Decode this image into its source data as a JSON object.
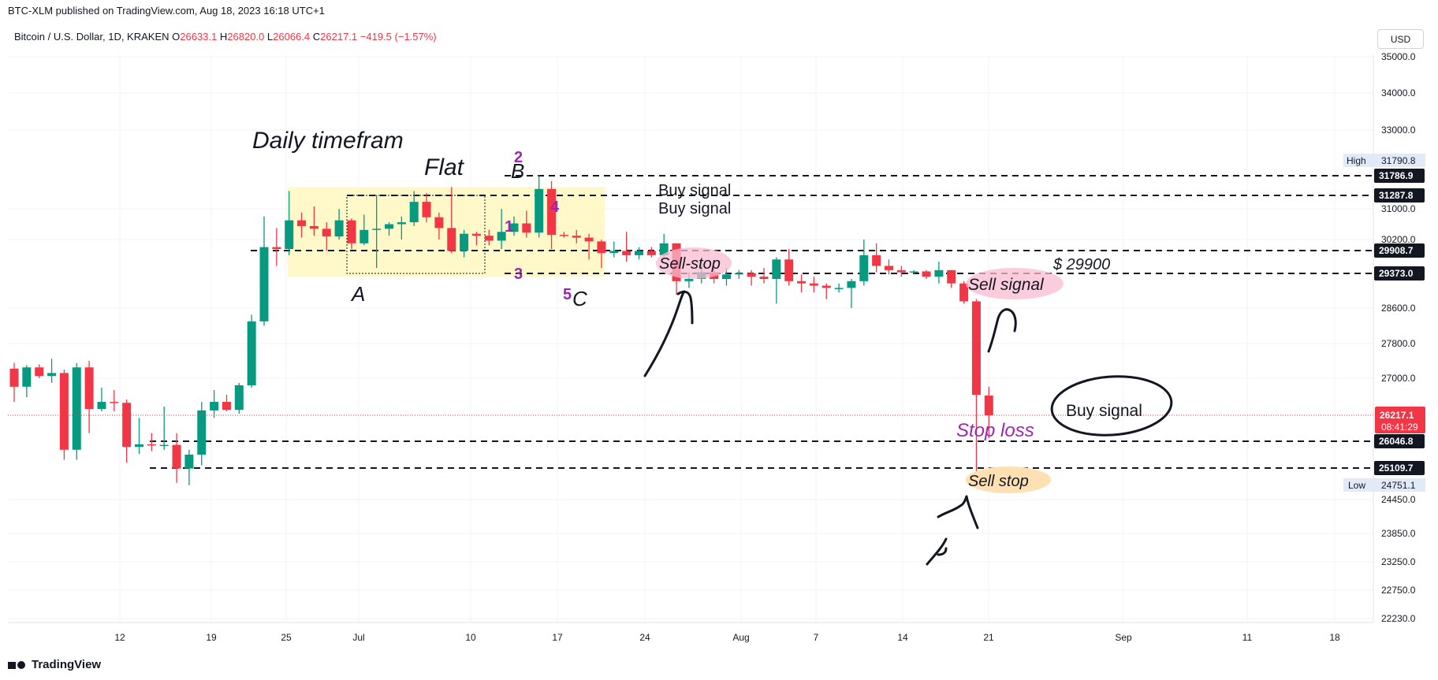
{
  "header": {
    "publisher_line": "BTC-XLM published on TradingView.com, Aug 18, 2023 16:18 UTC+1"
  },
  "legend": {
    "symbol": "Bitcoin / U.S. Dollar, 1D, KRAKEN",
    "o_label": "O",
    "o_value": "26633.1",
    "h_label": "H",
    "h_value": "26820.0",
    "l_label": "L",
    "l_value": "26066.4",
    "c_label": "C",
    "c_value": "26217.1",
    "change": "−419.5 (−1.57%)"
  },
  "currency": "USD",
  "footer": {
    "brand": "TradingView"
  },
  "colors": {
    "up": "#089981",
    "down": "#f23645",
    "annotation_purple": "#9c27b0",
    "flat_box": "#fff8c9",
    "sell_stop_oval": "#f8bbd0",
    "sell_stop_bottom_oval": "#ffe0b2"
  },
  "price_axis": {
    "ticks": [
      "35000.0",
      "34000.0",
      "33000.0",
      "31000.0",
      "30200.0",
      "28600.0",
      "27800.0",
      "27000.0",
      "24450.0",
      "23850.0",
      "23250.0",
      "22750.0",
      "22230.0"
    ],
    "high_label": "High",
    "high_value": "31790.8",
    "low_label": "Low",
    "low_value": "24751.1",
    "level_labels": [
      "31786.9",
      "31287.8",
      "29908.7",
      "29373.0",
      "26046.8",
      "25109.7"
    ],
    "last_price": "26217.1",
    "countdown": "08:41:29"
  },
  "time_axis": {
    "ticks": [
      "12",
      "19",
      "25",
      "Jul",
      "10",
      "17",
      "24",
      "Aug",
      "7",
      "14",
      "21",
      "Sep",
      "11",
      "18"
    ]
  },
  "annotations": {
    "daily_timeframe": "Daily timefram",
    "flat": "Flat",
    "wave_a": "A",
    "wave_b": "B",
    "wave_c": "C",
    "n1": "1",
    "n2": "2",
    "n3": "3",
    "n4": "4",
    "n5": "5",
    "buy_signal_1": "Buy signal",
    "buy_signal_2": "Buy signal",
    "sell_stop_mid": "Sell-stop",
    "price_29900": "$ 29900",
    "sell_signal": "Sell signal",
    "buy_signal_circle": "Buy signal",
    "stop_loss": "Stop loss",
    "sell_stop_low": "Sell stop"
  },
  "chart_data": {
    "type": "candlestick",
    "title": "Bitcoin / U.S. Dollar, 1D, KRAKEN",
    "ylim": [
      21950,
      35400
    ],
    "x_ticks": [
      "12",
      "19",
      "25",
      "Jul",
      "10",
      "17",
      "24",
      "Aug",
      "7",
      "14",
      "21",
      "Sep",
      "11",
      "18"
    ],
    "y_ticks": [
      35000,
      34000,
      33000,
      31000,
      30200,
      28600,
      27800,
      27000,
      24450,
      23850,
      23250,
      22750,
      22230
    ],
    "candles": [
      {
        "date": "Jun 1",
        "o": 27220,
        "h": 27350,
        "l": 26500,
        "c": 26820
      },
      {
        "date": "Jun 2",
        "o": 26820,
        "h": 27300,
        "l": 26600,
        "c": 27250
      },
      {
        "date": "Jun 3",
        "o": 27250,
        "h": 27320,
        "l": 27000,
        "c": 27050
      },
      {
        "date": "Jun 4",
        "o": 27050,
        "h": 27450,
        "l": 26900,
        "c": 27120
      },
      {
        "date": "Jun 5",
        "o": 27120,
        "h": 27200,
        "l": 25400,
        "c": 25750
      },
      {
        "date": "Jun 6",
        "o": 25750,
        "h": 27350,
        "l": 25400,
        "c": 27250
      },
      {
        "date": "Jun 7",
        "o": 27250,
        "h": 27400,
        "l": 26100,
        "c": 26350
      },
      {
        "date": "Jun 8",
        "o": 26350,
        "h": 26800,
        "l": 26300,
        "c": 26500
      },
      {
        "date": "Jun 9",
        "o": 26500,
        "h": 26750,
        "l": 26300,
        "c": 26480
      },
      {
        "date": "Jun 10",
        "o": 26480,
        "h": 26550,
        "l": 25300,
        "c": 25850
      },
      {
        "date": "Jun 11",
        "o": 25850,
        "h": 26200,
        "l": 25600,
        "c": 25940
      },
      {
        "date": "Jun 12",
        "o": 25940,
        "h": 26100,
        "l": 25700,
        "c": 25900
      },
      {
        "date": "Jun 13",
        "o": 25900,
        "h": 26400,
        "l": 25750,
        "c": 25920
      },
      {
        "date": "Jun 14",
        "o": 25920,
        "h": 26100,
        "l": 24800,
        "c": 25100
      },
      {
        "date": "Jun 15",
        "o": 25100,
        "h": 25750,
        "l": 24751,
        "c": 25580
      },
      {
        "date": "Jun 16",
        "o": 25580,
        "h": 26500,
        "l": 25200,
        "c": 26320
      },
      {
        "date": "Jun 17",
        "o": 26320,
        "h": 26750,
        "l": 26200,
        "c": 26500
      },
      {
        "date": "Jun 18",
        "o": 26500,
        "h": 26650,
        "l": 26300,
        "c": 26330
      },
      {
        "date": "Jun 19",
        "o": 26330,
        "h": 26900,
        "l": 26250,
        "c": 26850
      },
      {
        "date": "Jun 20",
        "o": 26850,
        "h": 28450,
        "l": 26800,
        "c": 28300
      },
      {
        "date": "Jun 21",
        "o": 28300,
        "h": 30800,
        "l": 28200,
        "c": 30000
      },
      {
        "date": "Jun 22",
        "o": 30000,
        "h": 30500,
        "l": 29550,
        "c": 29950
      },
      {
        "date": "Jun 23",
        "o": 29950,
        "h": 31400,
        "l": 29800,
        "c": 30700
      },
      {
        "date": "Jun 24",
        "o": 30700,
        "h": 30900,
        "l": 30250,
        "c": 30550
      },
      {
        "date": "Jun 25",
        "o": 30550,
        "h": 31050,
        "l": 30300,
        "c": 30480
      },
      {
        "date": "Jun 26",
        "o": 30480,
        "h": 30650,
        "l": 29900,
        "c": 30280
      },
      {
        "date": "Jun 27",
        "o": 30280,
        "h": 31000,
        "l": 30200,
        "c": 30700
      },
      {
        "date": "Jun 28",
        "o": 30700,
        "h": 30750,
        "l": 29950,
        "c": 30100
      },
      {
        "date": "Jun 29",
        "o": 30100,
        "h": 30850,
        "l": 30050,
        "c": 30450
      },
      {
        "date": "Jun 30",
        "o": 30450,
        "h": 31300,
        "l": 29500,
        "c": 30480
      },
      {
        "date": "Jul 1",
        "o": 30480,
        "h": 30650,
        "l": 30300,
        "c": 30600
      },
      {
        "date": "Jul 2",
        "o": 30600,
        "h": 30800,
        "l": 30200,
        "c": 30650
      },
      {
        "date": "Jul 3",
        "o": 30650,
        "h": 31400,
        "l": 30550,
        "c": 31150
      },
      {
        "date": "Jul 4",
        "o": 31150,
        "h": 31350,
        "l": 30650,
        "c": 30780
      },
      {
        "date": "Jul 5",
        "o": 30780,
        "h": 30900,
        "l": 30200,
        "c": 30500
      },
      {
        "date": "Jul 6",
        "o": 30500,
        "h": 31500,
        "l": 29850,
        "c": 29900
      },
      {
        "date": "Jul 7",
        "o": 29900,
        "h": 30450,
        "l": 29750,
        "c": 30350
      },
      {
        "date": "Jul 8",
        "o": 30350,
        "h": 30400,
        "l": 30050,
        "c": 30300
      },
      {
        "date": "Jul 9",
        "o": 30300,
        "h": 30450,
        "l": 30050,
        "c": 30170
      },
      {
        "date": "Jul 10",
        "o": 30170,
        "h": 31000,
        "l": 29950,
        "c": 30400
      },
      {
        "date": "Jul 11",
        "o": 30400,
        "h": 30800,
        "l": 30300,
        "c": 30620
      },
      {
        "date": "Jul 12",
        "o": 30620,
        "h": 30950,
        "l": 30250,
        "c": 30380
      },
      {
        "date": "Jul 13",
        "o": 30380,
        "h": 31800,
        "l": 30250,
        "c": 31450
      },
      {
        "date": "Jul 14",
        "o": 31450,
        "h": 31650,
        "l": 29950,
        "c": 30320
      },
      {
        "date": "Jul 15",
        "o": 30320,
        "h": 30400,
        "l": 30250,
        "c": 30300
      },
      {
        "date": "Jul 16",
        "o": 30300,
        "h": 30450,
        "l": 30100,
        "c": 30250
      },
      {
        "date": "Jul 17",
        "o": 30250,
        "h": 30350,
        "l": 29700,
        "c": 30150
      },
      {
        "date": "Jul 18",
        "o": 30150,
        "h": 30200,
        "l": 29500,
        "c": 29850
      },
      {
        "date": "Jul 19",
        "o": 29850,
        "h": 30150,
        "l": 29750,
        "c": 29900
      },
      {
        "date": "Jul 20",
        "o": 29900,
        "h": 30400,
        "l": 29650,
        "c": 29800
      },
      {
        "date": "Jul 21",
        "o": 29800,
        "h": 30000,
        "l": 29700,
        "c": 29900
      },
      {
        "date": "Jul 22",
        "o": 29900,
        "h": 30000,
        "l": 29750,
        "c": 29800
      },
      {
        "date": "Jul 23",
        "o": 29800,
        "h": 30350,
        "l": 29750,
        "c": 30100
      },
      {
        "date": "Jul 24",
        "o": 30100,
        "h": 30100,
        "l": 28900,
        "c": 29200
      },
      {
        "date": "Jul 25",
        "o": 29200,
        "h": 29400,
        "l": 29050,
        "c": 29250
      },
      {
        "date": "Jul 26",
        "o": 29250,
        "h": 29650,
        "l": 29150,
        "c": 29400
      },
      {
        "date": "Jul 27",
        "o": 29400,
        "h": 29550,
        "l": 29150,
        "c": 29250
      },
      {
        "date": "Jul 28",
        "o": 29250,
        "h": 29500,
        "l": 29100,
        "c": 29350
      },
      {
        "date": "Jul 29",
        "o": 29350,
        "h": 29450,
        "l": 29250,
        "c": 29380
      },
      {
        "date": "Jul 30",
        "o": 29380,
        "h": 29450,
        "l": 29100,
        "c": 29300
      },
      {
        "date": "Jul 31",
        "o": 29300,
        "h": 29500,
        "l": 29150,
        "c": 29250
      },
      {
        "date": "Aug 1",
        "o": 29250,
        "h": 29750,
        "l": 28700,
        "c": 29700
      },
      {
        "date": "Aug 2",
        "o": 29700,
        "h": 29950,
        "l": 29100,
        "c": 29200
      },
      {
        "date": "Aug 3",
        "o": 29200,
        "h": 29350,
        "l": 28950,
        "c": 29150
      },
      {
        "date": "Aug 4",
        "o": 29150,
        "h": 29300,
        "l": 28950,
        "c": 29100
      },
      {
        "date": "Aug 5",
        "o": 29100,
        "h": 29150,
        "l": 28800,
        "c": 29050
      },
      {
        "date": "Aug 6",
        "o": 29050,
        "h": 29150,
        "l": 28950,
        "c": 29050
      },
      {
        "date": "Aug 7",
        "o": 29050,
        "h": 29250,
        "l": 28600,
        "c": 29200
      },
      {
        "date": "Aug 8",
        "o": 29200,
        "h": 30200,
        "l": 29100,
        "c": 29800
      },
      {
        "date": "Aug 9",
        "o": 29800,
        "h": 30100,
        "l": 29400,
        "c": 29550
      },
      {
        "date": "Aug 10",
        "o": 29550,
        "h": 29700,
        "l": 29350,
        "c": 29450
      },
      {
        "date": "Aug 11",
        "o": 29450,
        "h": 29550,
        "l": 29300,
        "c": 29400
      },
      {
        "date": "Aug 12",
        "o": 29400,
        "h": 29450,
        "l": 29350,
        "c": 29420
      },
      {
        "date": "Aug 13",
        "o": 29420,
        "h": 29450,
        "l": 29250,
        "c": 29300
      },
      {
        "date": "Aug 14",
        "o": 29300,
        "h": 29650,
        "l": 29150,
        "c": 29450
      },
      {
        "date": "Aug 15",
        "o": 29450,
        "h": 29450,
        "l": 29050,
        "c": 29150
      },
      {
        "date": "Aug 16",
        "o": 29150,
        "h": 29200,
        "l": 28700,
        "c": 28750
      },
      {
        "date": "Aug 17",
        "o": 28750,
        "h": 28800,
        "l": 24751,
        "c": 26650
      },
      {
        "date": "Aug 18",
        "o": 26633.1,
        "h": 26820,
        "l": 26066.4,
        "c": 26217.1
      }
    ],
    "horizontal_levels": [
      31786.9,
      31287.8,
      29908.7,
      29373.0,
      26046.8,
      25109.7
    ],
    "flat_box": {
      "from": "Jun 23",
      "to": "Jul 18",
      "top": 31500,
      "bottom": 29300
    }
  }
}
